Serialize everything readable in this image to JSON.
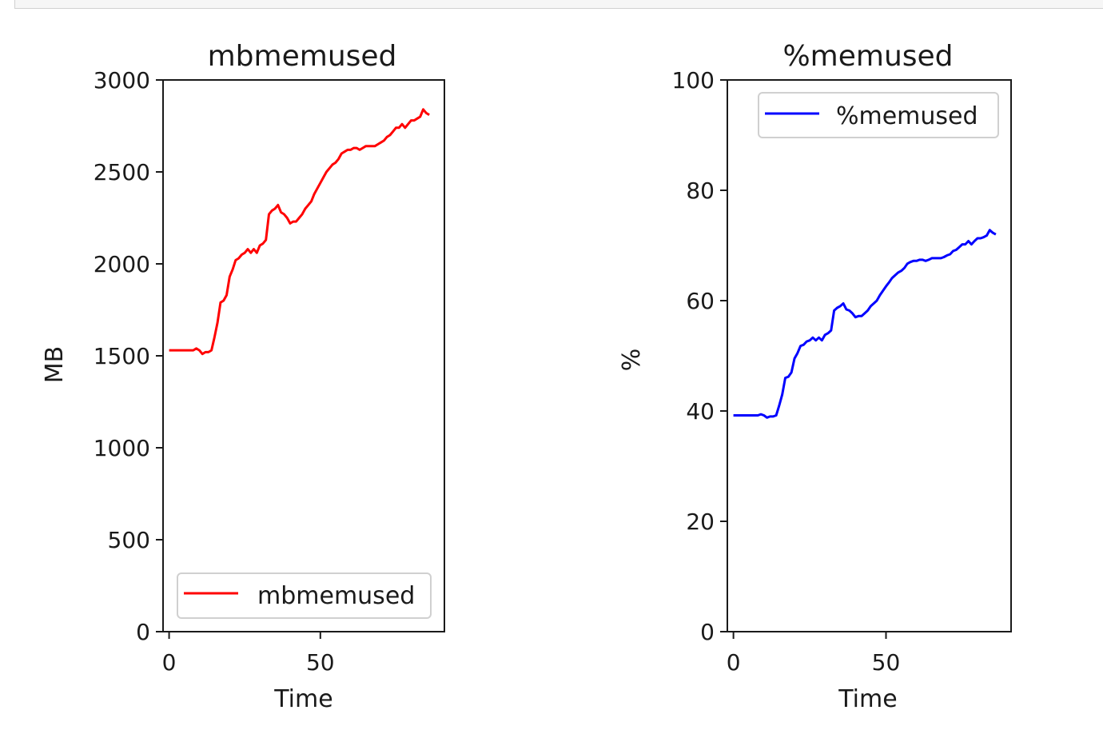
{
  "chart_data": [
    {
      "type": "line",
      "title": "mbmemused",
      "xlabel": "Time",
      "ylabel": "MB",
      "xlim": [
        -2,
        91
      ],
      "ylim": [
        0,
        3000
      ],
      "xticks": [
        0,
        50
      ],
      "yticks": [
        0,
        500,
        1000,
        1500,
        2000,
        2500,
        3000
      ],
      "xtick_labels": [
        "0",
        "50"
      ],
      "ytick_labels": [
        "0",
        "500",
        "1000",
        "1500",
        "2000",
        "2500",
        "3000"
      ],
      "legend_position": "lower-right",
      "grid": false,
      "series": [
        {
          "name": "mbmemused",
          "color": "#ff0000",
          "x": [
            0,
            2,
            4,
            6,
            8,
            9,
            10,
            11,
            12,
            13,
            14,
            15,
            16,
            17,
            18,
            19,
            20,
            21,
            22,
            23,
            24,
            25,
            26,
            27,
            28,
            29,
            30,
            31,
            32,
            33,
            34,
            35,
            36,
            37,
            38,
            39,
            40,
            41,
            42,
            43,
            44,
            45,
            46,
            47,
            48,
            49,
            50,
            51,
            52,
            53,
            54,
            55,
            56,
            57,
            58,
            59,
            60,
            61,
            62,
            63,
            64,
            65,
            66,
            67,
            68,
            69,
            70,
            71,
            72,
            73,
            74,
            75,
            76,
            77,
            78,
            79,
            80,
            81,
            82,
            83,
            84,
            85,
            86
          ],
          "y": [
            1530,
            1530,
            1530,
            1530,
            1530,
            1540,
            1530,
            1510,
            1520,
            1520,
            1530,
            1600,
            1680,
            1790,
            1800,
            1830,
            1930,
            1970,
            2020,
            2030,
            2050,
            2060,
            2080,
            2060,
            2080,
            2060,
            2100,
            2110,
            2130,
            2270,
            2290,
            2300,
            2320,
            2280,
            2270,
            2250,
            2220,
            2230,
            2230,
            2250,
            2270,
            2300,
            2320,
            2340,
            2380,
            2410,
            2440,
            2470,
            2500,
            2520,
            2540,
            2550,
            2570,
            2600,
            2610,
            2620,
            2620,
            2630,
            2630,
            2620,
            2630,
            2640,
            2640,
            2640,
            2640,
            2650,
            2660,
            2670,
            2690,
            2700,
            2720,
            2740,
            2740,
            2760,
            2740,
            2760,
            2780,
            2780,
            2790,
            2800,
            2840,
            2820,
            2810
          ]
        }
      ]
    },
    {
      "type": "line",
      "title": "%memused",
      "xlabel": "Time",
      "ylabel": "%",
      "xlim": [
        -2,
        91
      ],
      "ylim": [
        0,
        100
      ],
      "xticks": [
        0,
        50
      ],
      "yticks": [
        0,
        20,
        40,
        60,
        80,
        100
      ],
      "xtick_labels": [
        "0",
        "50"
      ],
      "ytick_labels": [
        "0",
        "20",
        "40",
        "60",
        "80",
        "100"
      ],
      "legend_position": "top-right",
      "grid": false,
      "series": [
        {
          "name": "%memused",
          "color": "#0000ff",
          "x": [
            0,
            2,
            4,
            6,
            8,
            9,
            10,
            11,
            12,
            13,
            14,
            15,
            16,
            17,
            18,
            19,
            20,
            21,
            22,
            23,
            24,
            25,
            26,
            27,
            28,
            29,
            30,
            31,
            32,
            33,
            34,
            35,
            36,
            37,
            38,
            39,
            40,
            41,
            42,
            43,
            44,
            45,
            46,
            47,
            48,
            49,
            50,
            51,
            52,
            53,
            54,
            55,
            56,
            57,
            58,
            59,
            60,
            61,
            62,
            63,
            64,
            65,
            66,
            67,
            68,
            69,
            70,
            71,
            72,
            73,
            74,
            75,
            76,
            77,
            78,
            79,
            80,
            81,
            82,
            83,
            84,
            85,
            86
          ],
          "y": [
            39.2,
            39.2,
            39.2,
            39.2,
            39.2,
            39.4,
            39.2,
            38.8,
            39.0,
            39.0,
            39.2,
            41.0,
            43.0,
            46.0,
            46.2,
            47.0,
            49.5,
            50.5,
            51.8,
            52.0,
            52.6,
            52.8,
            53.3,
            52.8,
            53.3,
            52.8,
            53.8,
            54.1,
            54.6,
            58.2,
            58.7,
            59.0,
            59.5,
            58.4,
            58.2,
            57.7,
            57.0,
            57.2,
            57.2,
            57.7,
            58.2,
            59.0,
            59.5,
            60.0,
            61.0,
            61.8,
            62.6,
            63.3,
            64.1,
            64.6,
            65.1,
            65.4,
            65.9,
            66.7,
            67.0,
            67.2,
            67.2,
            67.4,
            67.4,
            67.2,
            67.4,
            67.7,
            67.7,
            67.7,
            67.7,
            67.9,
            68.2,
            68.4,
            69.0,
            69.2,
            69.7,
            70.2,
            70.2,
            70.8,
            70.2,
            70.8,
            71.3,
            71.3,
            71.5,
            71.8,
            72.8,
            72.3,
            72.0
          ]
        }
      ]
    }
  ]
}
